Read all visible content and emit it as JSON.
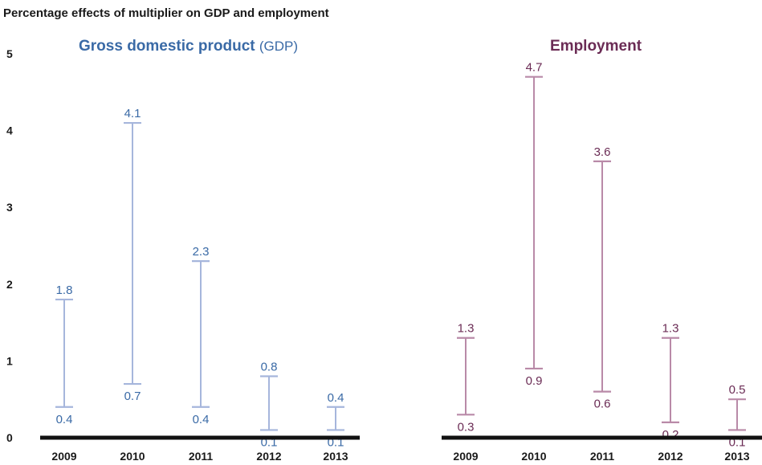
{
  "page_title": "Percentage effects of multiplier on GDP and employment",
  "colors": {
    "gdp_line": "#a6b6dc",
    "gdp_text": "#3a6aa6",
    "emp_line": "#b98aa8",
    "emp_text": "#6b2c55",
    "axis": "#111111"
  },
  "chart_data": [
    {
      "type": "range",
      "title": "Gross domestic product",
      "title_suffix": "(GDP)",
      "categories": [
        "2009",
        "2010",
        "2011",
        "2012",
        "2013"
      ],
      "low": [
        0.4,
        0.7,
        0.4,
        0.1,
        0.1
      ],
      "high": [
        1.8,
        4.1,
        2.3,
        0.8,
        0.4
      ],
      "low_labels": [
        "0.4",
        "0.7",
        "0.4",
        "0.1",
        "0.1"
      ],
      "high_labels": [
        "1.8",
        "4.1",
        "2.3",
        "0.8",
        "0.4"
      ],
      "y_ticks": [
        "0",
        "1",
        "2",
        "3",
        "4",
        "5"
      ],
      "ylim": [
        0,
        5
      ],
      "grid": false
    },
    {
      "type": "range",
      "title": "Employment",
      "categories": [
        "2009",
        "2010",
        "2011",
        "2012",
        "2013"
      ],
      "low": [
        0.3,
        0.9,
        0.6,
        0.2,
        0.1
      ],
      "high": [
        1.3,
        4.7,
        3.6,
        1.3,
        0.5
      ],
      "low_labels": [
        "0.3",
        "0.9",
        "0.6",
        "0.2",
        "0.1"
      ],
      "high_labels": [
        "1.3",
        "4.7",
        "3.6",
        "1.3",
        "0.5"
      ],
      "ylim": [
        0,
        5
      ],
      "grid": false
    }
  ]
}
